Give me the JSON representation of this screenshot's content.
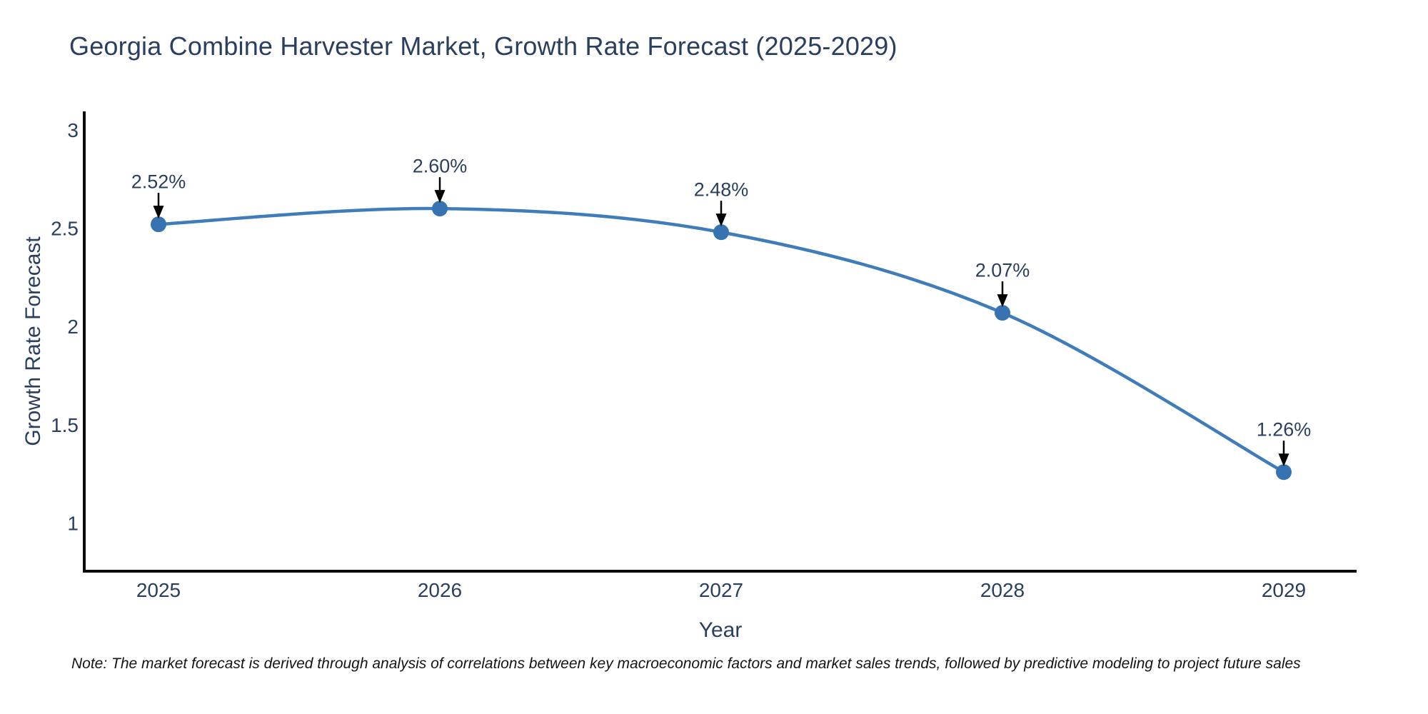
{
  "header": {
    "title": "Georgia Combine Harvester Market, Growth Rate Forecast (2025-2029)"
  },
  "chart_data": {
    "type": "line",
    "title": "Georgia Combine Harvester Market, Growth Rate Forecast (2025-2029)",
    "categories": [
      "2025",
      "2026",
      "2027",
      "2028",
      "2029"
    ],
    "series": [
      {
        "name": "Growth Rate Forecast",
        "values": [
          2.52,
          2.6,
          2.48,
          2.07,
          1.26
        ],
        "point_labels": [
          "2.52%",
          "2.60%",
          "2.48%",
          "2.07%",
          "1.26%"
        ]
      }
    ],
    "xlabel": "Year",
    "ylabel": "Growth Rate Forecast",
    "yticks": [
      3,
      2.5,
      2,
      1.5,
      1
    ],
    "ytick_labels": [
      "3",
      "2.5",
      "2",
      "1.5",
      "1"
    ],
    "ylim": [
      0.756,
      3.087
    ],
    "line_shape": "spline",
    "grid": false,
    "legend_position": "none",
    "annotations_have_arrows": true,
    "colors": {
      "line": "#3f7cba",
      "marker": "#3873b1",
      "axis": "#0a0a0a",
      "text": "#2a3f5f",
      "annotation_arrow": "#000000",
      "background": "#ffffff"
    }
  },
  "footer": {
    "note": "Note: The market forecast is derived through analysis of correlations between key macroeconomic factors and market sales trends, followed by predictive modeling to project future sales"
  }
}
